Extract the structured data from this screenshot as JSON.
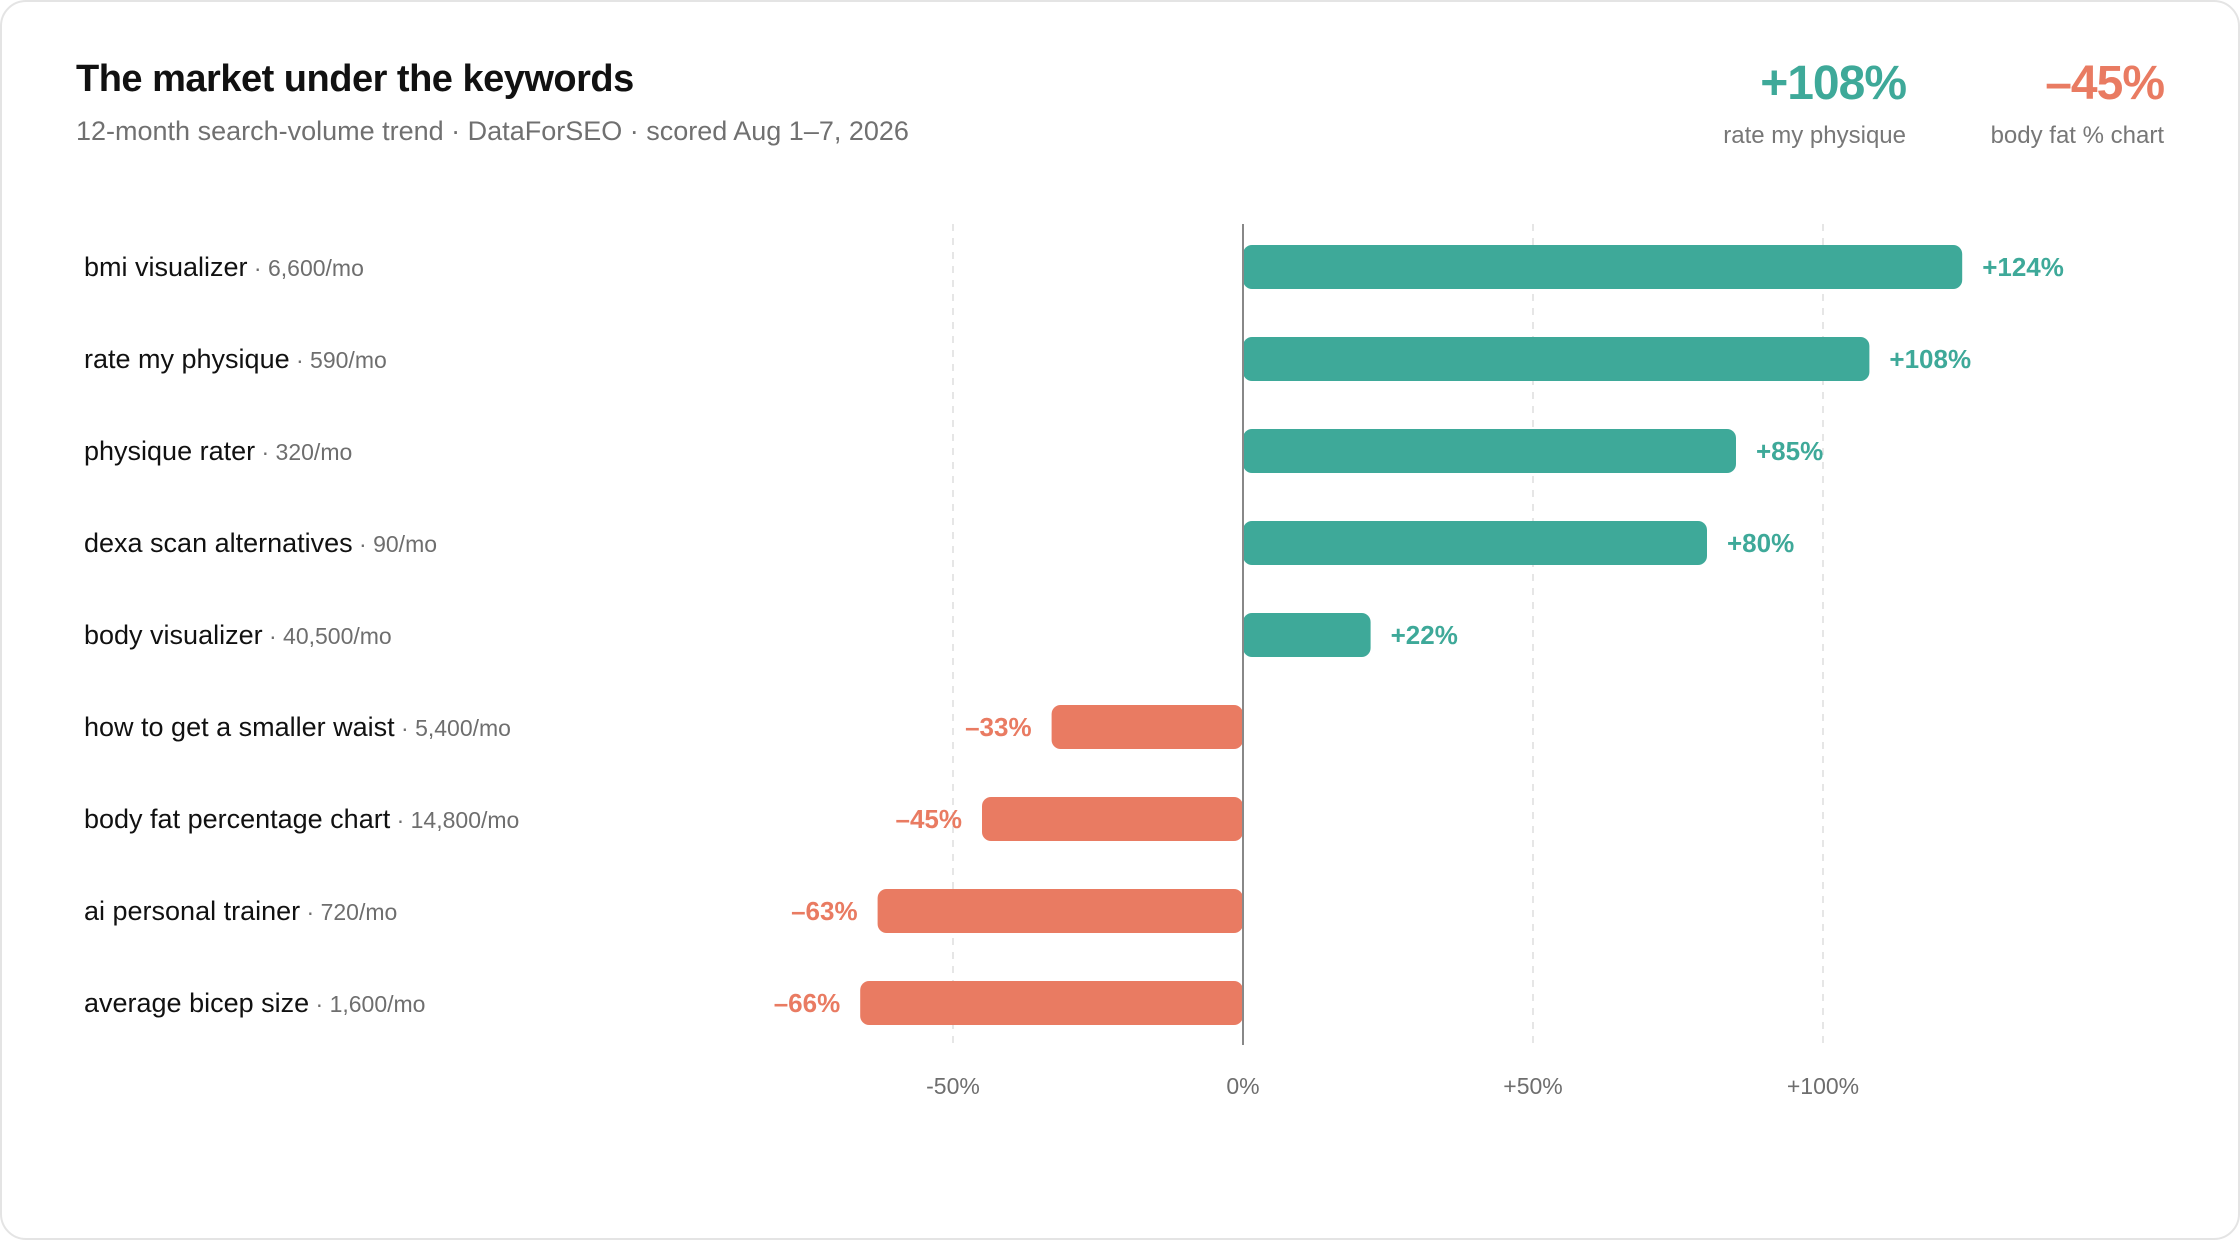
{
  "header": {
    "title": "The market under the keywords",
    "subtitle": "12-month search-volume trend · DataForSEO · scored Aug 1–7, 2026"
  },
  "stats": [
    {
      "value": "+108%",
      "label": "rate my physique",
      "color": "#3ea999"
    },
    {
      "value": "–45%",
      "label": "body fat % chart",
      "color": "#e97b62"
    }
  ],
  "colors": {
    "positive": "#3ea999",
    "negative": "#e97b62",
    "grid": "#dddddd",
    "axis": "#888888"
  },
  "chart_data": {
    "type": "bar",
    "orientation": "horizontal",
    "categories": [
      "bmi visualizer",
      "rate my physique",
      "physique rater",
      "dexa scan alternatives",
      "body visualizer",
      "how to get a smaller waist",
      "body fat percentage chart",
      "ai personal trainer",
      "average bicep size"
    ],
    "volumes": [
      "· 6,600/mo",
      "· 590/mo",
      "· 320/mo",
      "· 90/mo",
      "· 40,500/mo",
      "· 5,400/mo",
      "· 14,800/mo",
      "· 720/mo",
      "· 1,600/mo"
    ],
    "values": [
      124,
      108,
      85,
      80,
      22,
      -33,
      -45,
      -63,
      -66
    ],
    "value_labels": [
      "+124%",
      "+108%",
      "+85%",
      "+80%",
      "+22%",
      "–33%",
      "–45%",
      "–63%",
      "–66%"
    ],
    "xlim": [
      -75,
      135
    ],
    "xticks": [
      -50,
      0,
      50,
      100
    ],
    "xtick_labels": [
      "-50%",
      "0%",
      "+50%",
      "+100%"
    ],
    "grid": true
  }
}
